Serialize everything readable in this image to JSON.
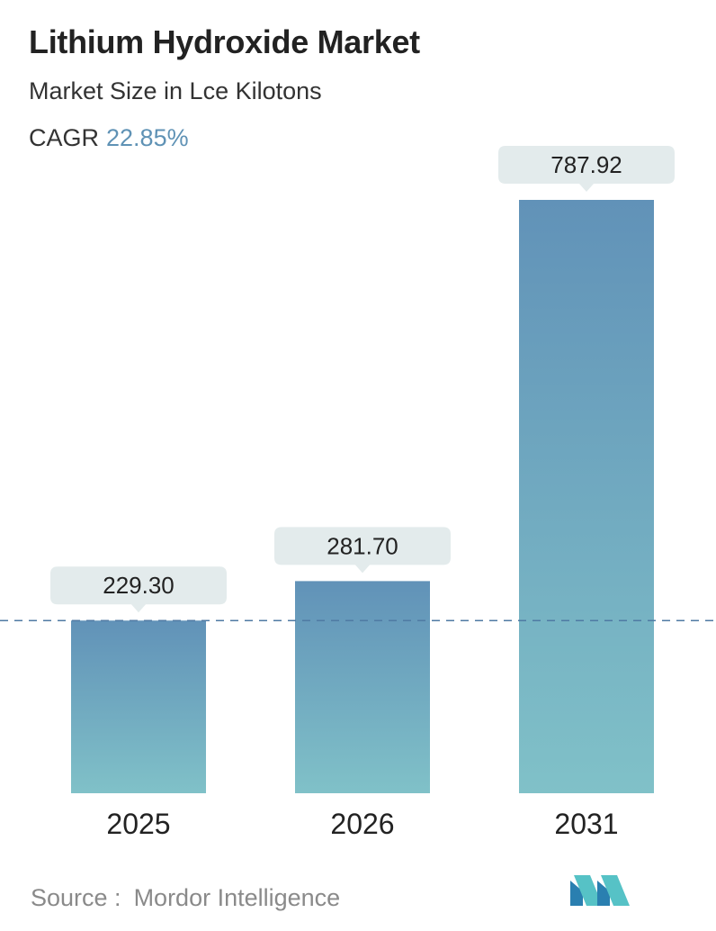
{
  "header": {
    "title": "Lithium Hydroxide Market",
    "subtitle": "Market Size in Lce Kilotons",
    "cagr_label": "CAGR",
    "cagr_value": "22.85%"
  },
  "footer": {
    "source_label": "Source :",
    "source_name": "Mordor Intelligence",
    "logo_icon": "mordor-intelligence-logo-icon"
  },
  "colors": {
    "bar_top": "#6192b8",
    "bar_bottom": "#80c1c8",
    "callout": "#e3ebec",
    "accent_text": "#5f92b5",
    "reference_line": "#4f7aa3"
  },
  "chart_data": {
    "type": "bar",
    "categories": [
      "2025",
      "2026",
      "2031"
    ],
    "values": [
      229.3,
      281.7,
      787.92
    ],
    "value_labels": [
      "229.30",
      "281.70",
      "787.92"
    ],
    "reference_line_value": 229.3,
    "ylim": [
      0,
      787.92
    ],
    "grid": false,
    "legend": "none"
  }
}
